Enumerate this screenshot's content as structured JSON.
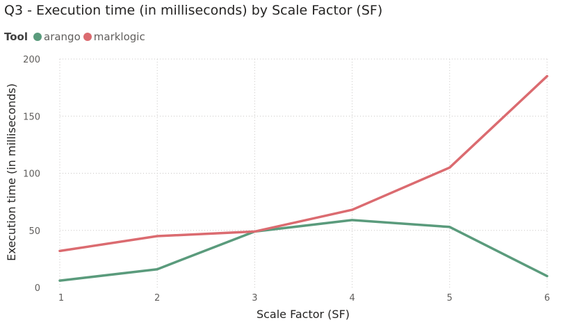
{
  "chart_data": {
    "type": "line",
    "title": "Q3 - Execution time (in milliseconds) by Scale Factor (SF)",
    "legend_title": "Tool",
    "legend_placement": "top-left",
    "xlabel": "Scale Factor (SF)",
    "ylabel": "Execution time (in milliseconds)",
    "x": [
      1,
      2,
      3,
      4,
      5,
      6
    ],
    "x_tick_labels": [
      "1",
      "2",
      "3",
      "4",
      "5",
      "6"
    ],
    "ylim": [
      0,
      200
    ],
    "y_ticks": [
      0,
      50,
      100,
      150,
      200
    ],
    "grid": "dotted",
    "series": [
      {
        "name": "arango",
        "color": "#5a9b7c",
        "values": [
          6,
          16,
          49,
          59,
          53,
          10
        ]
      },
      {
        "name": "marklogic",
        "color": "#db6b70",
        "values": [
          32,
          45,
          49,
          68,
          105,
          185
        ]
      }
    ]
  }
}
